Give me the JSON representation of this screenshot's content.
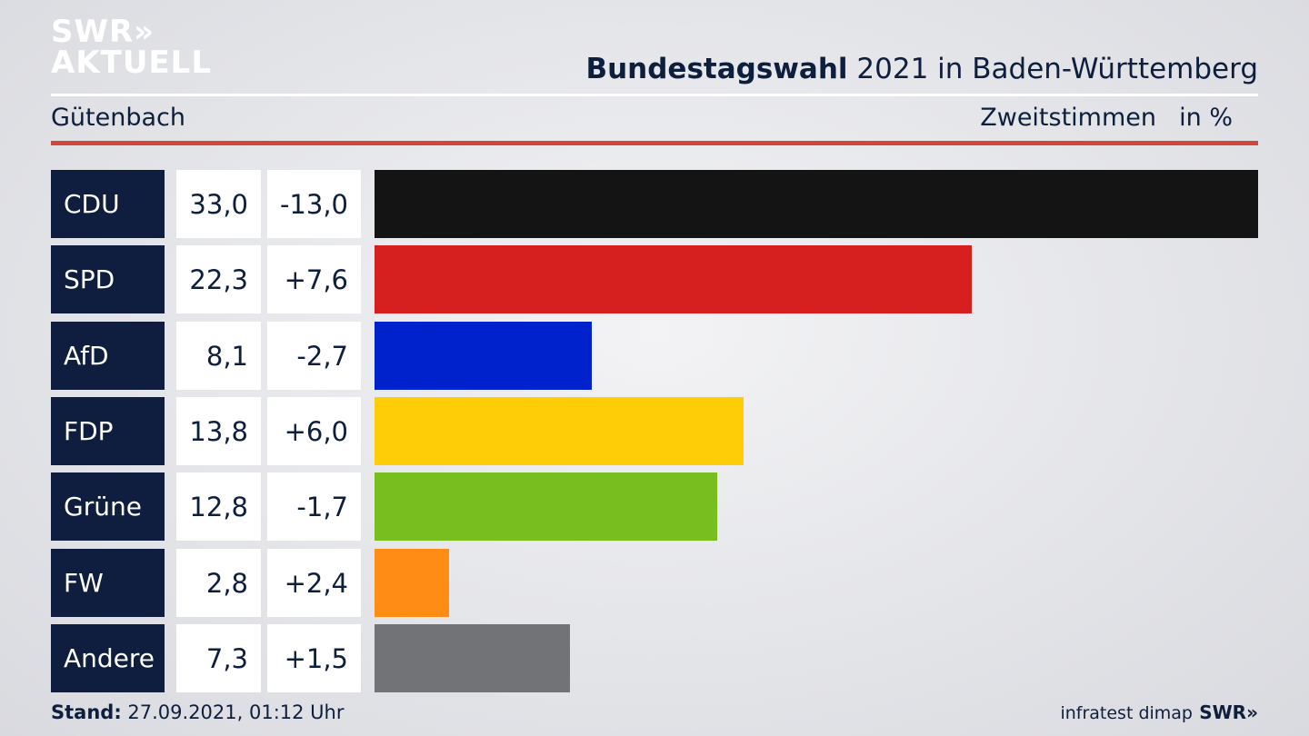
{
  "logo": {
    "line1": "SWR»",
    "line2": "AKTUELL"
  },
  "header": {
    "title_bold": "Bundestagswahl",
    "title_rest": " 2021 in Baden-Württemberg",
    "region": "Gütenbach",
    "metric": "Zweitstimmen",
    "unit": "in %"
  },
  "chart_data": {
    "type": "bar",
    "orientation": "horizontal",
    "title": "Bundestagswahl 2021 in Baden-Württemberg",
    "subtitle": "Gütenbach — Zweitstimmen in %",
    "categories": [
      "CDU",
      "SPD",
      "AfD",
      "FDP",
      "Grüne",
      "FW",
      "Andere"
    ],
    "values": [
      33.0,
      22.3,
      8.1,
      13.8,
      12.8,
      2.8,
      7.3
    ],
    "value_labels": [
      "33,0",
      "22,3",
      "8,1",
      "13,8",
      "12,8",
      "2,8",
      "7,3"
    ],
    "change_labels": [
      "-13,0",
      "+7,6",
      "-2,7",
      "+6,0",
      "-1,7",
      "+2,4",
      "+1,5"
    ],
    "colors": [
      "#141414",
      "#d62020",
      "#0022cc",
      "#ffcc08",
      "#78be1e",
      "#ff8c14",
      "#727376"
    ],
    "xlim": [
      0,
      33.0
    ]
  },
  "footer": {
    "stand_label": "Stand:",
    "stand_value": " 27.09.2021, 01:12 Uhr",
    "source": "infratest dimap",
    "logo": "SWR»"
  }
}
